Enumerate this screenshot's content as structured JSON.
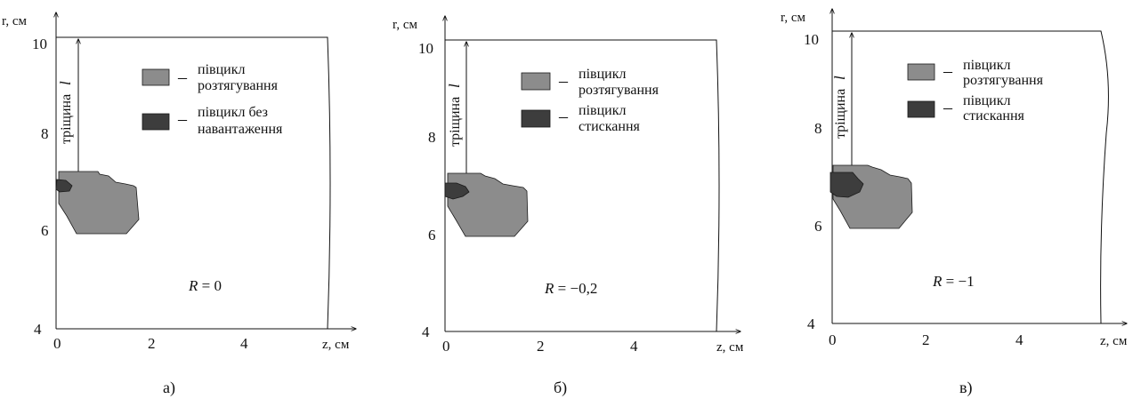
{
  "colors": {
    "tension": "#8c8c8c",
    "inner": "#3d3d3d",
    "outline": "#1a1a1a",
    "line": "#111111"
  },
  "crack_label": "тріщина",
  "crack_symbol": "l",
  "r_axis_label": "r, см",
  "z_axis_label": "z, см",
  "panels": [
    {
      "id": "a",
      "caption": "а)",
      "r_label_ticks": [
        "4",
        "6",
        "8",
        "10"
      ],
      "z_label_ticks": [
        "0",
        "2",
        "4"
      ],
      "legend": [
        {
          "kind": "tension",
          "dash": "–",
          "lines": [
            "півцикл",
            "розтягування"
          ]
        },
        {
          "kind": "inner",
          "dash": "–",
          "lines": [
            "півцикл без",
            "навантаження"
          ]
        }
      ],
      "r_symbol": "R",
      "r_value": " = 0"
    },
    {
      "id": "b",
      "caption": "б)",
      "r_label_ticks": [
        "4",
        "6",
        "8",
        "10"
      ],
      "z_label_ticks": [
        "0",
        "2",
        "4"
      ],
      "legend": [
        {
          "kind": "tension",
          "dash": "–",
          "lines": [
            "півцикл",
            "розтягування"
          ]
        },
        {
          "kind": "inner",
          "dash": "–",
          "lines": [
            "півцикл",
            "стискання"
          ]
        }
      ],
      "r_symbol": "R",
      "r_value": " = −0,2"
    },
    {
      "id": "c",
      "caption": "в)",
      "r_label_ticks": [
        "4",
        "6",
        "8",
        "10"
      ],
      "z_label_ticks": [
        "0",
        "2",
        "4"
      ],
      "legend": [
        {
          "kind": "tension",
          "dash": "–",
          "lines": [
            "півцикл",
            "розтягування"
          ]
        },
        {
          "kind": "inner",
          "dash": "–",
          "lines": [
            "півцикл",
            "стискання"
          ]
        }
      ],
      "r_symbol": "R",
      "r_value": " = −1"
    }
  ]
}
